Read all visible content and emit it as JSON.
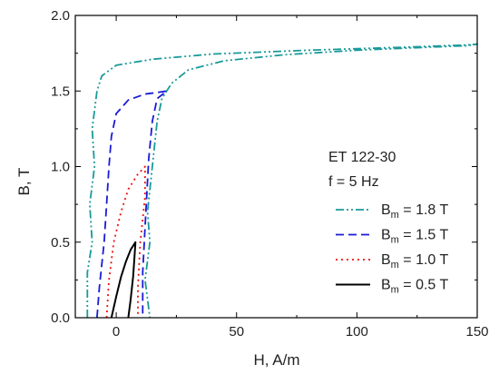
{
  "chart_data": {
    "type": "line",
    "xlabel": "H, A/m",
    "ylabel": "B, T",
    "xlim": [
      -17,
      150
    ],
    "ylim": [
      0,
      2
    ],
    "xticks": [
      "0",
      "50",
      "100",
      "150"
    ],
    "yticks": [
      "0.0",
      "0.5",
      "1.0",
      "1.5",
      "2.0"
    ],
    "grid": false,
    "legend": {
      "position": "lower-right",
      "header": [
        "ET 122-30",
        "f = 5 Hz"
      ]
    },
    "series": [
      {
        "name": "B_m = 1.8 T",
        "label_main": "B",
        "label_sub": "m",
        "label_rest": " = 1.8 T",
        "color": "#1a9a9a",
        "dash": "9 3 2 3 2 3",
        "points": [
          [
            -12,
            0
          ],
          [
            -12,
            0.3
          ],
          [
            -10,
            0.5
          ],
          [
            -11,
            0.75
          ],
          [
            -9,
            1.0
          ],
          [
            -10,
            1.25
          ],
          [
            -8,
            1.5
          ],
          [
            -6,
            1.6
          ],
          [
            0,
            1.67
          ],
          [
            15,
            1.71
          ],
          [
            40,
            1.745
          ],
          [
            80,
            1.77
          ],
          [
            120,
            1.79
          ],
          [
            146,
            1.805
          ],
          [
            150,
            1.81
          ],
          [
            146,
            1.8
          ],
          [
            130,
            1.79
          ],
          [
            100,
            1.77
          ],
          [
            70,
            1.74
          ],
          [
            45,
            1.7
          ],
          [
            30,
            1.64
          ],
          [
            23,
            1.55
          ],
          [
            19,
            1.45
          ],
          [
            17,
            1.3
          ],
          [
            15,
            1.0
          ],
          [
            13,
            0.7
          ],
          [
            14,
            0.5
          ],
          [
            12,
            0.25
          ],
          [
            14,
            0.0
          ]
        ]
      },
      {
        "name": "B_m = 1.5 T",
        "label_main": "B",
        "label_sub": "m",
        "label_rest": " = 1.5 T",
        "color": "#1a1ad9",
        "dash": "9 5",
        "points": [
          [
            -8,
            0
          ],
          [
            -7,
            0.2
          ],
          [
            -5,
            0.5
          ],
          [
            -4,
            0.75
          ],
          [
            -3,
            1.0
          ],
          [
            -2,
            1.2
          ],
          [
            0,
            1.35
          ],
          [
            5,
            1.44
          ],
          [
            12,
            1.48
          ],
          [
            17,
            1.49
          ],
          [
            21,
            1.5
          ],
          [
            17,
            1.45
          ],
          [
            15,
            1.3
          ],
          [
            13.5,
            1.05
          ],
          [
            12,
            0.6
          ],
          [
            11,
            0.3
          ],
          [
            11,
            0.0
          ]
        ]
      },
      {
        "name": "B_m = 1.0 T",
        "label_main": "B",
        "label_sub": "m",
        "label_rest": " = 1.0 T",
        "color": "#ee1111",
        "dash": "2 4",
        "points": [
          [
            -4,
            0
          ],
          [
            -3,
            0.25
          ],
          [
            -1,
            0.5
          ],
          [
            2,
            0.7
          ],
          [
            5,
            0.85
          ],
          [
            9,
            0.95
          ],
          [
            12,
            1.0
          ],
          [
            12,
            0.8
          ],
          [
            10,
            0.5
          ],
          [
            9,
            0.2
          ],
          [
            9,
            0.0
          ]
        ]
      },
      {
        "name": "B_m = 0.5 T",
        "label_main": "B",
        "label_sub": "m",
        "label_rest": " = 0.5 T",
        "color": "#000000",
        "dash": "",
        "points": [
          [
            -2,
            0
          ],
          [
            0,
            0.14
          ],
          [
            2,
            0.27
          ],
          [
            4,
            0.37
          ],
          [
            6,
            0.45
          ],
          [
            8,
            0.5
          ],
          [
            7.5,
            0.38
          ],
          [
            7,
            0.27
          ],
          [
            6,
            0.12
          ],
          [
            5,
            0.0
          ]
        ]
      }
    ]
  }
}
